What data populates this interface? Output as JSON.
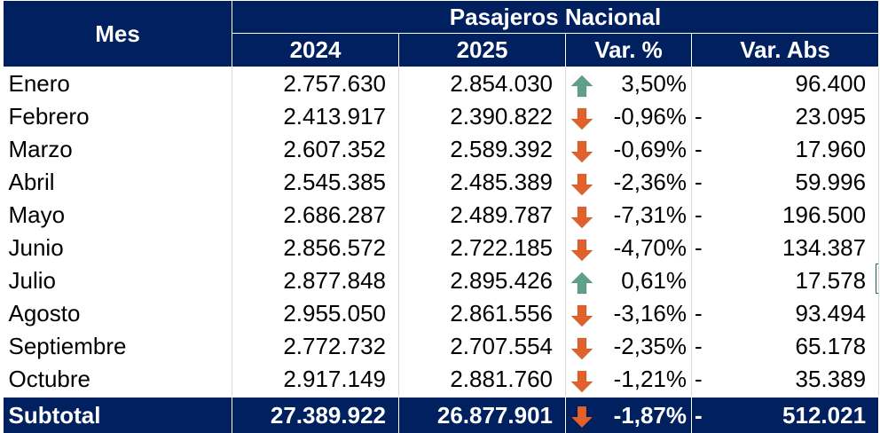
{
  "table": {
    "header_month": "Mes",
    "header_group": "Pasajeros Nacional",
    "header_cols": [
      "2024",
      "2025",
      "Var. %",
      "Var. Abs"
    ],
    "rows": [
      {
        "mes": "Enero",
        "y2024": "2.757.630",
        "y2025": "2.854.030",
        "trend": "up",
        "var_pct": "3,50%",
        "dash": "",
        "var_abs": "96.400"
      },
      {
        "mes": "Febrero",
        "y2024": "2.413.917",
        "y2025": "2.390.822",
        "trend": "down",
        "var_pct": "-0,96%",
        "dash": "-",
        "var_abs": "23.095"
      },
      {
        "mes": "Marzo",
        "y2024": "2.607.352",
        "y2025": "2.589.392",
        "trend": "down",
        "var_pct": "-0,69%",
        "dash": "-",
        "var_abs": "17.960"
      },
      {
        "mes": "Abril",
        "y2024": "2.545.385",
        "y2025": "2.485.389",
        "trend": "down",
        "var_pct": "-2,36%",
        "dash": "-",
        "var_abs": "59.996"
      },
      {
        "mes": "Mayo",
        "y2024": "2.686.287",
        "y2025": "2.489.787",
        "trend": "down",
        "var_pct": "-7,31%",
        "dash": "-",
        "var_abs": "196.500"
      },
      {
        "mes": "Junio",
        "y2024": "2.856.572",
        "y2025": "2.722.185",
        "trend": "down",
        "var_pct": "-4,70%",
        "dash": "-",
        "var_abs": "134.387"
      },
      {
        "mes": "Julio",
        "y2024": "2.877.848",
        "y2025": "2.895.426",
        "trend": "up",
        "var_pct": "0,61%",
        "dash": "",
        "var_abs": "17.578"
      },
      {
        "mes": "Agosto",
        "y2024": "2.955.050",
        "y2025": "2.861.556",
        "trend": "down",
        "var_pct": "-3,16%",
        "dash": "-",
        "var_abs": "93.494"
      },
      {
        "mes": "Septiembre",
        "y2024": "2.772.732",
        "y2025": "2.707.554",
        "trend": "down",
        "var_pct": "-2,35%",
        "dash": "-",
        "var_abs": "65.178"
      },
      {
        "mes": "Octubre",
        "y2024": "2.917.149",
        "y2025": "2.881.760",
        "trend": "down",
        "var_pct": "-1,21%",
        "dash": "-",
        "var_abs": "35.389"
      }
    ],
    "subtotal": {
      "mes": "Subtotal",
      "y2024": "27.389.922",
      "y2025": "26.877.901",
      "trend": "down",
      "var_pct": "-1,87%",
      "dash": "-",
      "var_abs": "512.021"
    }
  },
  "colors": {
    "header_bg": "#002060",
    "header_text": "#ffffff",
    "arrow_up": "#5fa08a",
    "arrow_down": "#e2612a"
  },
  "icons": {
    "up": "arrow-up-icon",
    "down": "arrow-down-icon"
  }
}
